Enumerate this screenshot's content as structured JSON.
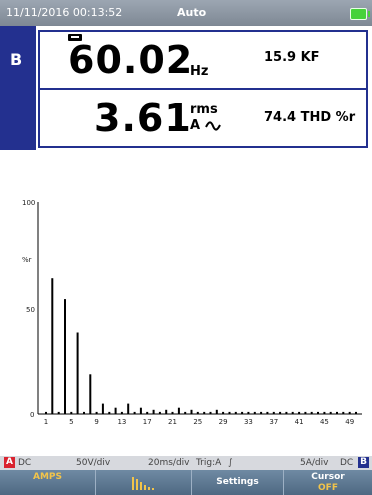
{
  "status": {
    "datetime": "11/11/2016 00:13:52",
    "mode": "Auto",
    "battery_color": "#46d23a"
  },
  "channel": "B",
  "meter": {
    "frequency_value": "60.02",
    "frequency_unit": "Hz",
    "kf_text": "15.9 KF",
    "current_value": "3.61",
    "current_unit_top": "rms",
    "current_unit_bottom": "A",
    "thd_text": "74.4 THD %r"
  },
  "chart_data": {
    "type": "bar",
    "ylabel": "%r",
    "yticks": [
      "100",
      "50",
      "0"
    ],
    "ylim": [
      0,
      100
    ],
    "x_tick_labels": [
      "1",
      "5",
      "9",
      "13",
      "17",
      "21",
      "25",
      "29",
      "33",
      "37",
      "41",
      "45",
      "49"
    ],
    "harmonics": [
      1,
      2,
      3,
      4,
      5,
      6,
      7,
      8,
      9,
      10,
      11,
      12,
      13,
      14,
      15,
      16,
      17,
      18,
      19,
      20,
      21,
      22,
      23,
      24,
      25,
      26,
      27,
      28,
      29,
      30,
      31,
      32,
      33,
      34,
      35,
      36,
      37,
      38,
      39,
      40,
      41,
      42,
      43,
      44,
      45,
      46,
      47,
      48,
      49,
      50
    ],
    "values": [
      1,
      65,
      1,
      55,
      1,
      39,
      1,
      19,
      1,
      5,
      1,
      3,
      1,
      5,
      1,
      3,
      1,
      2,
      1,
      2,
      1,
      3,
      1,
      2,
      1,
      1,
      1,
      2,
      1,
      1,
      1,
      1,
      1,
      1,
      1,
      1,
      1,
      1,
      1,
      1,
      1,
      1,
      1,
      1,
      1,
      1,
      1,
      1,
      1,
      1
    ]
  },
  "statusbar": {
    "left_channel": "A",
    "left_coupling": "DC",
    "left_scale": "50V/div",
    "timebase": "20ms/div",
    "trigger": "Trig:A",
    "right_scale": "5A/div",
    "right_coupling": "DC",
    "right_channel": "B",
    "channel_a_color": "#d9232f",
    "channel_b_color": "#23308f"
  },
  "softkeys": {
    "amps": "AMPS",
    "bargraph_icon": "bar-graph-icon",
    "settings": "Settings",
    "cursor": "Cursor",
    "cursor_state": "OFF"
  }
}
